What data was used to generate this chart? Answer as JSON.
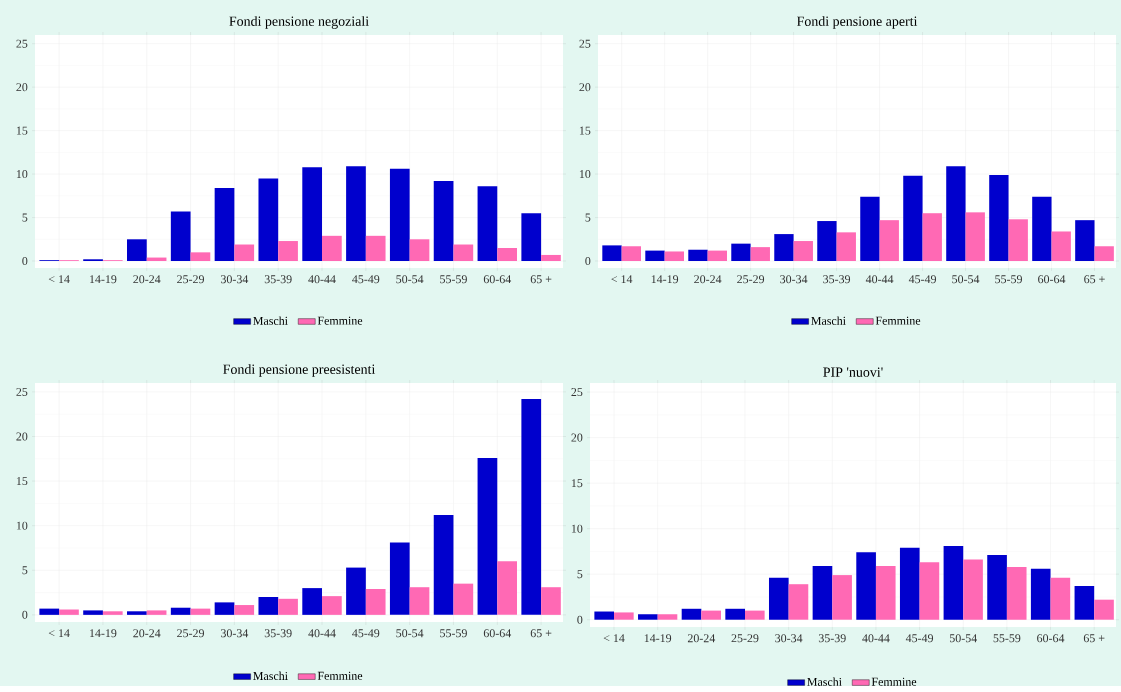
{
  "chart_data": [
    {
      "type": "bar",
      "title": "Fondi pensione negoziali",
      "categories": [
        "< 14",
        "14-19",
        "20-24",
        "25-29",
        "30-34",
        "35-39",
        "40-44",
        "45-49",
        "50-54",
        "55-59",
        "60-64",
        "65 +"
      ],
      "series": [
        {
          "name": "Maschi",
          "color": "#0000cd",
          "values": [
            0.1,
            0.2,
            2.5,
            5.7,
            8.4,
            9.5,
            10.8,
            10.9,
            10.6,
            9.2,
            8.6,
            5.5
          ]
        },
        {
          "name": "Femmine",
          "color": "#ff69b4",
          "values": [
            0.1,
            0.1,
            0.4,
            1.0,
            1.9,
            2.3,
            2.9,
            2.9,
            2.5,
            1.9,
            1.5,
            0.7
          ]
        }
      ],
      "ylim": [
        -0.8,
        26
      ],
      "yticks": [
        0,
        5,
        10,
        15,
        20,
        25
      ],
      "grid": true,
      "legend": "bottom"
    },
    {
      "type": "bar",
      "title": "Fondi pensione aperti",
      "categories": [
        "< 14",
        "14-19",
        "20-24",
        "25-29",
        "30-34",
        "35-39",
        "40-44",
        "45-49",
        "50-54",
        "55-59",
        "60-64",
        "65 +"
      ],
      "series": [
        {
          "name": "Maschi",
          "color": "#0000cd",
          "values": [
            1.8,
            1.2,
            1.3,
            2.0,
            3.1,
            4.6,
            7.4,
            9.8,
            10.9,
            9.9,
            7.4,
            4.7
          ]
        },
        {
          "name": "Femmine",
          "color": "#ff69b4",
          "values": [
            1.7,
            1.1,
            1.2,
            1.6,
            2.3,
            3.3,
            4.7,
            5.5,
            5.6,
            4.8,
            3.4,
            1.7
          ]
        }
      ],
      "ylim": [
        -0.8,
        26
      ],
      "yticks": [
        0,
        5,
        10,
        15,
        20,
        25
      ],
      "grid": true,
      "legend": "bottom"
    },
    {
      "type": "bar",
      "title": "Fondi pensione preesistenti",
      "categories": [
        "< 14",
        "14-19",
        "20-24",
        "25-29",
        "30-34",
        "35-39",
        "40-44",
        "45-49",
        "50-54",
        "55-59",
        "60-64",
        "65 +"
      ],
      "series": [
        {
          "name": "Maschi",
          "color": "#0000cd",
          "values": [
            0.7,
            0.5,
            0.4,
            0.8,
            1.4,
            2.0,
            3.0,
            5.3,
            8.1,
            11.2,
            17.6,
            24.2
          ]
        },
        {
          "name": "Femmine",
          "color": "#ff69b4",
          "values": [
            0.6,
            0.4,
            0.5,
            0.7,
            1.1,
            1.8,
            2.1,
            2.9,
            3.1,
            3.5,
            6.0,
            3.1
          ]
        }
      ],
      "ylim": [
        -0.8,
        26
      ],
      "yticks": [
        0,
        5,
        10,
        15,
        20,
        25
      ],
      "grid": true,
      "legend": "bottom"
    },
    {
      "type": "bar",
      "title": "PIP 'nuovi'",
      "categories": [
        "< 14",
        "14-19",
        "20-24",
        "25-29",
        "30-34",
        "35-39",
        "40-44",
        "45-49",
        "50-54",
        "55-59",
        "60-64",
        "65 +"
      ],
      "series": [
        {
          "name": "Maschi",
          "color": "#0000cd",
          "values": [
            0.9,
            0.6,
            1.2,
            1.2,
            4.6,
            5.9,
            7.4,
            7.9,
            8.1,
            7.1,
            5.6,
            3.7
          ]
        },
        {
          "name": "Femmine",
          "color": "#ff69b4",
          "values": [
            0.8,
            0.6,
            1.0,
            1.0,
            3.9,
            4.9,
            5.9,
            6.3,
            6.6,
            5.8,
            4.6,
            2.2
          ]
        }
      ],
      "ylim": [
        -0.8,
        26
      ],
      "yticks": [
        0,
        5,
        10,
        15,
        20,
        25
      ],
      "grid": true,
      "legend": "bottom"
    }
  ]
}
